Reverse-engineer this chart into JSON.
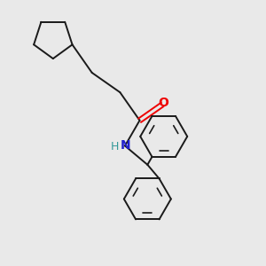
{
  "background_color": "#e9e9e9",
  "bond_color": "#1a1a1a",
  "bond_width": 1.4,
  "O_color": "#ee0000",
  "N_color": "#2222cc",
  "H_color": "#339999",
  "figsize": [
    3.0,
    3.0
  ],
  "dpi": 100,
  "xlim": [
    -1.0,
    5.5
  ],
  "ylim": [
    -5.5,
    2.5
  ]
}
